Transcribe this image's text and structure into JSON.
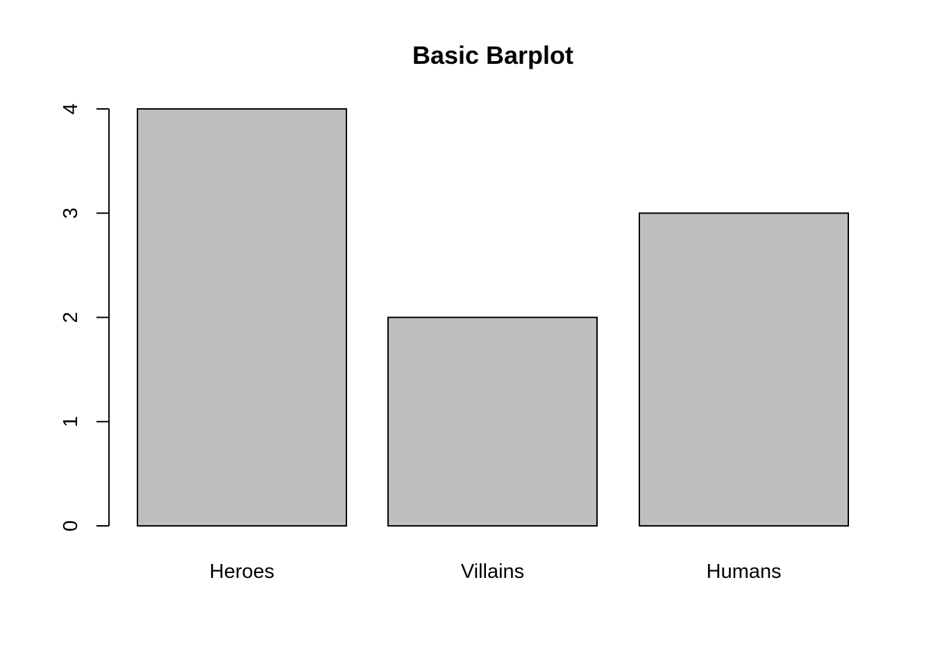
{
  "chart_data": {
    "type": "bar",
    "title": "Basic Barplot",
    "xlabel": "",
    "ylabel": "",
    "categories": [
      "Heroes",
      "Villains",
      "Humans"
    ],
    "values": [
      4,
      2,
      3
    ],
    "ylim": [
      0,
      4
    ],
    "yticks": [
      "0",
      "1",
      "2",
      "3",
      "4"
    ],
    "grid": false,
    "legend": "none",
    "colors": {
      "bar_fill": "#bebebe",
      "bar_stroke": "#000000",
      "axis": "#000000",
      "background": "#ffffff"
    }
  }
}
